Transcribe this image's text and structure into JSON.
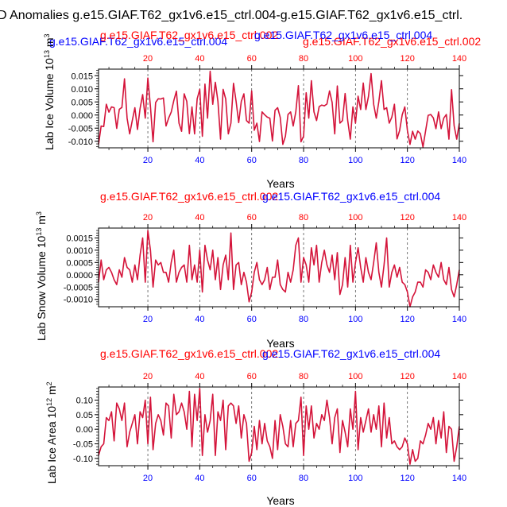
{
  "title": "D Anomalies g.e15.GIAF.T62_gx1v6.e15_ctrl.004-g.e15.GIAF.T62_gx1v6.e15_ctrl.",
  "series_names": {
    "blue": "g.e15.GIAF.T62_gx1v6.e15_ctrl.004",
    "red": "g.e15.GIAF.T62_gx1v6.e15_ctrl.002"
  },
  "colors": {
    "blue": "#0000ff",
    "red": "#ff0000",
    "line": "#d4143a",
    "grid": "#555555"
  },
  "chart_data": [
    {
      "type": "line",
      "id": "ice-volume",
      "title_left": "g.e15.GIAF.T62_gx1v6.e15_ctrl.004",
      "title_right": "g.e15.GIAF.T62_gx1v6.e15_ctrl.002",
      "overlap_label": "g.e15.GIAF.T62_gx1v6.e15_ctrl.002",
      "ylabel": "Lab Ice Volume 10",
      "ylabel_exp": "13",
      "ylabel_unit": " m",
      "ylabel_unit_exp": "3",
      "xlabel": "Years",
      "xlim": [
        1,
        140
      ],
      "ylim": [
        -0.0125,
        0.0175
      ],
      "yticks": [
        -0.01,
        -0.005,
        0.0,
        0.005,
        0.01,
        0.015
      ],
      "ytick_labels": [
        "-0.010",
        "-0.005",
        "0.000",
        "0.005",
        "0.010",
        "0.015"
      ],
      "xticks": [
        20,
        40,
        60,
        80,
        100,
        120,
        140
      ],
      "xtick_labels": [
        "20",
        "40",
        "60",
        "80",
        "100",
        "120",
        "140"
      ],
      "grid_x": [
        20,
        40,
        60,
        80,
        100,
        120
      ],
      "x_start": 1,
      "values": [
        -0.0112,
        -0.0042,
        -0.0044,
        0.0041,
        0.0011,
        0.0031,
        0.0028,
        -0.0051,
        0.0022,
        0.0029,
        0.0138,
        -0.0012,
        -0.0072,
        -0.0021,
        0.0028,
        -0.0055,
        0.0025,
        0.0078,
        -0.0012,
        0.0141,
        0.0032,
        -0.0102,
        0.0048,
        0.0062,
        0.0061,
        0.0065,
        -0.0042,
        -0.0012,
        0.0011,
        0.0055,
        0.0091,
        -0.0031,
        -0.0062,
        0.0081,
        0.0052,
        -0.0071,
        0.0031,
        -0.0072,
        0.0062,
        0.0098,
        -0.0081,
        0.0118,
        -0.0012,
        0.0167,
        0.0041,
        0.0125,
        0.0052,
        -0.0092,
        0.0098,
        0.0061,
        -0.0072,
        -0.0031,
        0.0121,
        0.0052,
        -0.0029,
        0.0052,
        0.0081,
        -0.0021,
        -0.0031,
        0.0092,
        -0.0058,
        -0.0031,
        -0.0101,
        0.0012,
        0.0001,
        -0.0008,
        -0.0012,
        -0.0099,
        0.0018,
        0.0028,
        -0.0009,
        -0.0112,
        -0.0081,
        0.0002,
        0.0012,
        -0.0042,
        0.0012,
        0.0112,
        -0.0102,
        -0.0081,
        0.0085,
        -0.0012,
        0.0131,
        0.0012,
        -0.0021,
        0.0032,
        0.0038,
        0.0035,
        0.0042,
        0.0092,
        0.0048,
        -0.0072,
        0.0111,
        -0.0031,
        -0.0021,
        0.0082,
        -0.0021,
        -0.0092,
        0.0031,
        -0.0031,
        0.0072,
        0.0021,
        0.0122,
        0.0021,
        0.0071,
        0.0158,
        0.0041,
        -0.0012,
        0.0052,
        0.0131,
        0.0021,
        0.0028,
        -0.0031,
        -0.0008,
        0.0041,
        -0.0091,
        -0.0059,
        0.0001,
        0.0031,
        -0.0059,
        -0.0112,
        -0.0062,
        -0.0092,
        -0.0061,
        -0.0071,
        -0.0122,
        -0.0061,
        -0.0001,
        0.0002,
        -0.0011,
        -0.0052,
        0.0012,
        -0.0052,
        -0.0012,
        0.0002,
        -0.0092,
        0.0097,
        -0.0041,
        -0.0092,
        -0.0032
      ]
    },
    {
      "type": "line",
      "id": "snow-volume",
      "title_left": "g.e15.GIAF.T62_gx1v6.e15_ctrl.002",
      "title_right": "g.e15.GIAF.T62_gx1v6.e15_ctrl.004",
      "overlap_label": "g.e15.GIAF.T62_gx1v6.e15_ctrl.002",
      "ylabel": "Lab Snow Volume 10",
      "ylabel_exp": "13",
      "ylabel_unit": " m",
      "ylabel_unit_exp": "3",
      "xlabel": "Years",
      "xlim": [
        1,
        140
      ],
      "ylim": [
        -0.0013,
        0.0019
      ],
      "yticks": [
        -0.001,
        -0.0005,
        0.0,
        0.0005,
        0.001,
        0.0015
      ],
      "ytick_labels": [
        "-0.0010",
        "-0.0005",
        "0.0000",
        "0.0005",
        "0.0010",
        "0.0015"
      ],
      "xticks": [
        20,
        40,
        60,
        80,
        100,
        120,
        140
      ],
      "xtick_labels": [
        "20",
        "40",
        "60",
        "80",
        "100",
        "120",
        "140"
      ],
      "grid_x": [
        20,
        40,
        60,
        80,
        100,
        120
      ],
      "x_start": 1,
      "values": [
        -0.0003,
        0.0006,
        -0.0002,
        0.0002,
        0.0003,
        0.0001,
        -0.0002,
        -0.0004,
        0.0002,
        -0.0001,
        0.0007,
        0.0003,
        0.0002,
        -0.0003,
        0.0004,
        -0.0002,
        0.0008,
        0.0015,
        -0.0003,
        0.0018,
        0.001,
        -0.0005,
        0.0006,
        0.0004,
        0.0005,
        0.0001,
        0.0001,
        -0.0003,
        0.0005,
        0.001,
        -0.0003,
        0.0001,
        0.0003,
        0.0004,
        -0.0003,
        0.0012,
        -0.0002,
        0.0004,
        -0.0003,
        0.001,
        -0.0007,
        0.0012,
        0.0006,
        0.0002,
        0.001,
        -0.0002,
        0.0007,
        -0.0006,
        0.0004,
        0.0008,
        -0.0002,
        0.0017,
        -0.0006,
        0.0004,
        0.0005,
        -0.0004,
        0.0001,
        -0.0003,
        -0.0011,
        -0.0007,
        0.0001,
        0.0005,
        -0.0002,
        -0.0004,
        -0.0002,
        0.0003,
        -0.0006,
        -0.0001,
        -0.0001,
        0.0006,
        -0.0004,
        -0.0006,
        -0.0007,
        0.0001,
        -0.0003,
        0.0002,
        0.0012,
        0.0015,
        -0.0003,
        0.0007,
        0.0004,
        -0.0003,
        0.0011,
        0.0004,
        0.0012,
        -0.0003,
        0.0005,
        0.001,
        0.0004,
        0.0001,
        0.0008,
        -0.0002,
        0.0009,
        -0.0008,
        -0.0004,
        0.0007,
        -0.0005,
        0.0012,
        -0.0003,
        0.0005,
        0.0011,
        0.0003,
        -0.0003,
        0.0007,
        0.0001,
        -0.0002,
        0.0005,
        0.0013,
        0.0001,
        -0.0005,
        0.0004,
        0.0015,
        -0.0005,
        0.0001,
        0.0004,
        -0.0001,
        0.0003,
        -0.0003,
        -0.0004,
        -0.0007,
        -0.0013,
        -0.0009,
        -0.0007,
        -0.0003,
        -0.0003,
        -0.0005,
        0.0002,
        0.0001,
        -0.0002,
        0.0004,
        0.0001,
        -0.0001,
        0.0005,
        -0.0002,
        -0.0004,
        0.0003,
        -0.0006,
        -0.0009,
        -0.0004,
        0.0002
      ]
    },
    {
      "type": "line",
      "id": "ice-area",
      "title_left": "g.e15.GIAF.T62_gx1v6.e15_ctrl.002",
      "title_right": "g.e15.GIAF.T62_gx1v6.e15_ctrl.004",
      "overlap_label": "g.e15.GIAF.T62_gx1v6.e15_ctrl.002",
      "ylabel": "Lab Ice Area 10",
      "ylabel_exp": "12",
      "ylabel_unit": " m",
      "ylabel_unit_exp": "2",
      "xlabel": "Years",
      "xlim": [
        1,
        140
      ],
      "ylim": [
        -0.125,
        0.145
      ],
      "yticks": [
        -0.1,
        -0.05,
        0.0,
        0.05,
        0.1
      ],
      "ytick_labels": [
        "-0.10",
        "-0.05",
        "0.00",
        "0.05",
        "0.10"
      ],
      "xticks": [
        20,
        40,
        60,
        80,
        100,
        120,
        140
      ],
      "xtick_labels": [
        "20",
        "40",
        "60",
        "80",
        "100",
        "120",
        "140"
      ],
      "grid_x": [
        20,
        40,
        60,
        80,
        100,
        120
      ],
      "x_start": 1,
      "values": [
        -0.09,
        -0.06,
        -0.05,
        0.04,
        0.03,
        0.06,
        -0.04,
        0.09,
        0.07,
        0.03,
        0.09,
        -0.06,
        -0.01,
        0.02,
        0.05,
        -0.05,
        0.06,
        0.04,
        0.1,
        -0.05,
        0.11,
        -0.07,
        0.02,
        0.05,
        0.03,
        -0.02,
        0.09,
        0.08,
        -0.03,
        0.12,
        0.05,
        0.06,
        0.09,
        0.06,
        0.0,
        0.13,
        -0.06,
        0.12,
        0.03,
        0.14,
        -0.09,
        0.05,
        -0.01,
        0.03,
        0.12,
        -0.09,
        0.06,
        0.03,
        0.1,
        -0.07,
        0.08,
        0.09,
        0.08,
        0.02,
        0.08,
        -0.03,
        0.05,
        0.02,
        -0.11,
        -0.08,
        0.01,
        -0.07,
        0.03,
        -0.05,
        0.02,
        -0.04,
        -0.06,
        -0.1,
        0.03,
        -0.07,
        0.05,
        0.01,
        -0.05,
        -0.06,
        0.03,
        -0.06,
        0.02,
        0.03,
        0.11,
        -0.09,
        0.08,
        0.0,
        0.08,
        -0.03,
        0.02,
        0.0,
        0.05,
        0.03,
        0.1,
        0.04,
        -0.05,
        0.04,
        0.07,
        -0.08,
        0.03,
        -0.01,
        -0.06,
        0.07,
        0.0,
        0.13,
        -0.07,
        0.04,
        -0.01,
        0.03,
        0.07,
        -0.01,
        0.05,
        0.0,
        0.08,
        -0.06,
        0.09,
        -0.03,
        0.04,
        -0.05,
        -0.04,
        -0.06,
        -0.07,
        -0.06,
        -0.03,
        -0.05,
        -0.12,
        -0.07,
        -0.11,
        -0.1,
        -0.04,
        -0.05,
        -0.02,
        0.02,
        0.0,
        0.04,
        -0.05,
        0.03,
        -0.03,
        0.06,
        -0.08,
        0.01,
        0.0,
        -0.11,
        -0.06,
        0.01
      ]
    }
  ]
}
